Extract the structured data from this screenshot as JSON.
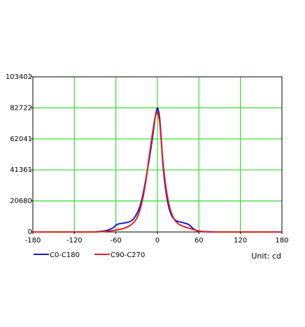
{
  "chart_data": {
    "type": "line",
    "title": "",
    "xlabel": "",
    "ylabel": "",
    "unit_label": "Unit: cd",
    "xlim": [
      -180,
      180
    ],
    "ylim": [
      0,
      103402
    ],
    "x_ticks": [
      -180,
      -120,
      -60,
      0,
      60,
      120,
      180
    ],
    "y_ticks": [
      0,
      20680,
      41361,
      62041,
      82722,
      103402
    ],
    "grid": true,
    "legend": "bottom-left",
    "colors": {
      "grid": "#33dd33",
      "axis": "#000000",
      "series_blue": "#1a1acc",
      "series_red": "#dd2222"
    },
    "series": [
      {
        "name": "C0-C180",
        "color": "#1a1acc",
        "x": [
          -180,
          -100,
          -85,
          -75,
          -65,
          -60,
          -55,
          -50,
          -45,
          -40,
          -35,
          -30,
          -25,
          -20,
          -16,
          -12,
          -8,
          -5,
          -3,
          -1,
          0,
          1,
          3,
          5,
          8,
          12,
          16,
          20,
          25,
          30,
          35,
          40,
          45,
          50,
          55,
          60,
          70,
          85,
          100,
          180
        ],
        "y": [
          0,
          0,
          300,
          800,
          2500,
          4500,
          5500,
          5800,
          6300,
          6800,
          8500,
          12000,
          17500,
          27000,
          37000,
          48000,
          60000,
          70000,
          77000,
          81500,
          82600,
          81800,
          77000,
          66000,
          45000,
          28000,
          17500,
          11500,
          8200,
          7000,
          6500,
          5800,
          5000,
          3000,
          1200,
          400,
          100,
          0,
          0,
          0
        ]
      },
      {
        "name": "C90-C270",
        "color": "#dd2222",
        "x": [
          -180,
          -100,
          -85,
          -75,
          -65,
          -60,
          -55,
          -50,
          -45,
          -40,
          -35,
          -30,
          -25,
          -20,
          -16,
          -12,
          -8,
          -5,
          -3,
          -1,
          0,
          1,
          3,
          5,
          8,
          12,
          16,
          20,
          25,
          30,
          35,
          40,
          45,
          50,
          55,
          60,
          70,
          85,
          100,
          180
        ],
        "y": [
          0,
          0,
          100,
          400,
          900,
          1300,
          1700,
          2200,
          3000,
          4200,
          6000,
          9000,
          15000,
          25000,
          36000,
          50000,
          63000,
          72000,
          77000,
          79500,
          79800,
          78500,
          74000,
          64000,
          47000,
          31000,
          20000,
          13000,
          8000,
          5500,
          4200,
          3300,
          2600,
          1900,
          1200,
          700,
          250,
          50,
          0,
          0
        ]
      }
    ]
  }
}
